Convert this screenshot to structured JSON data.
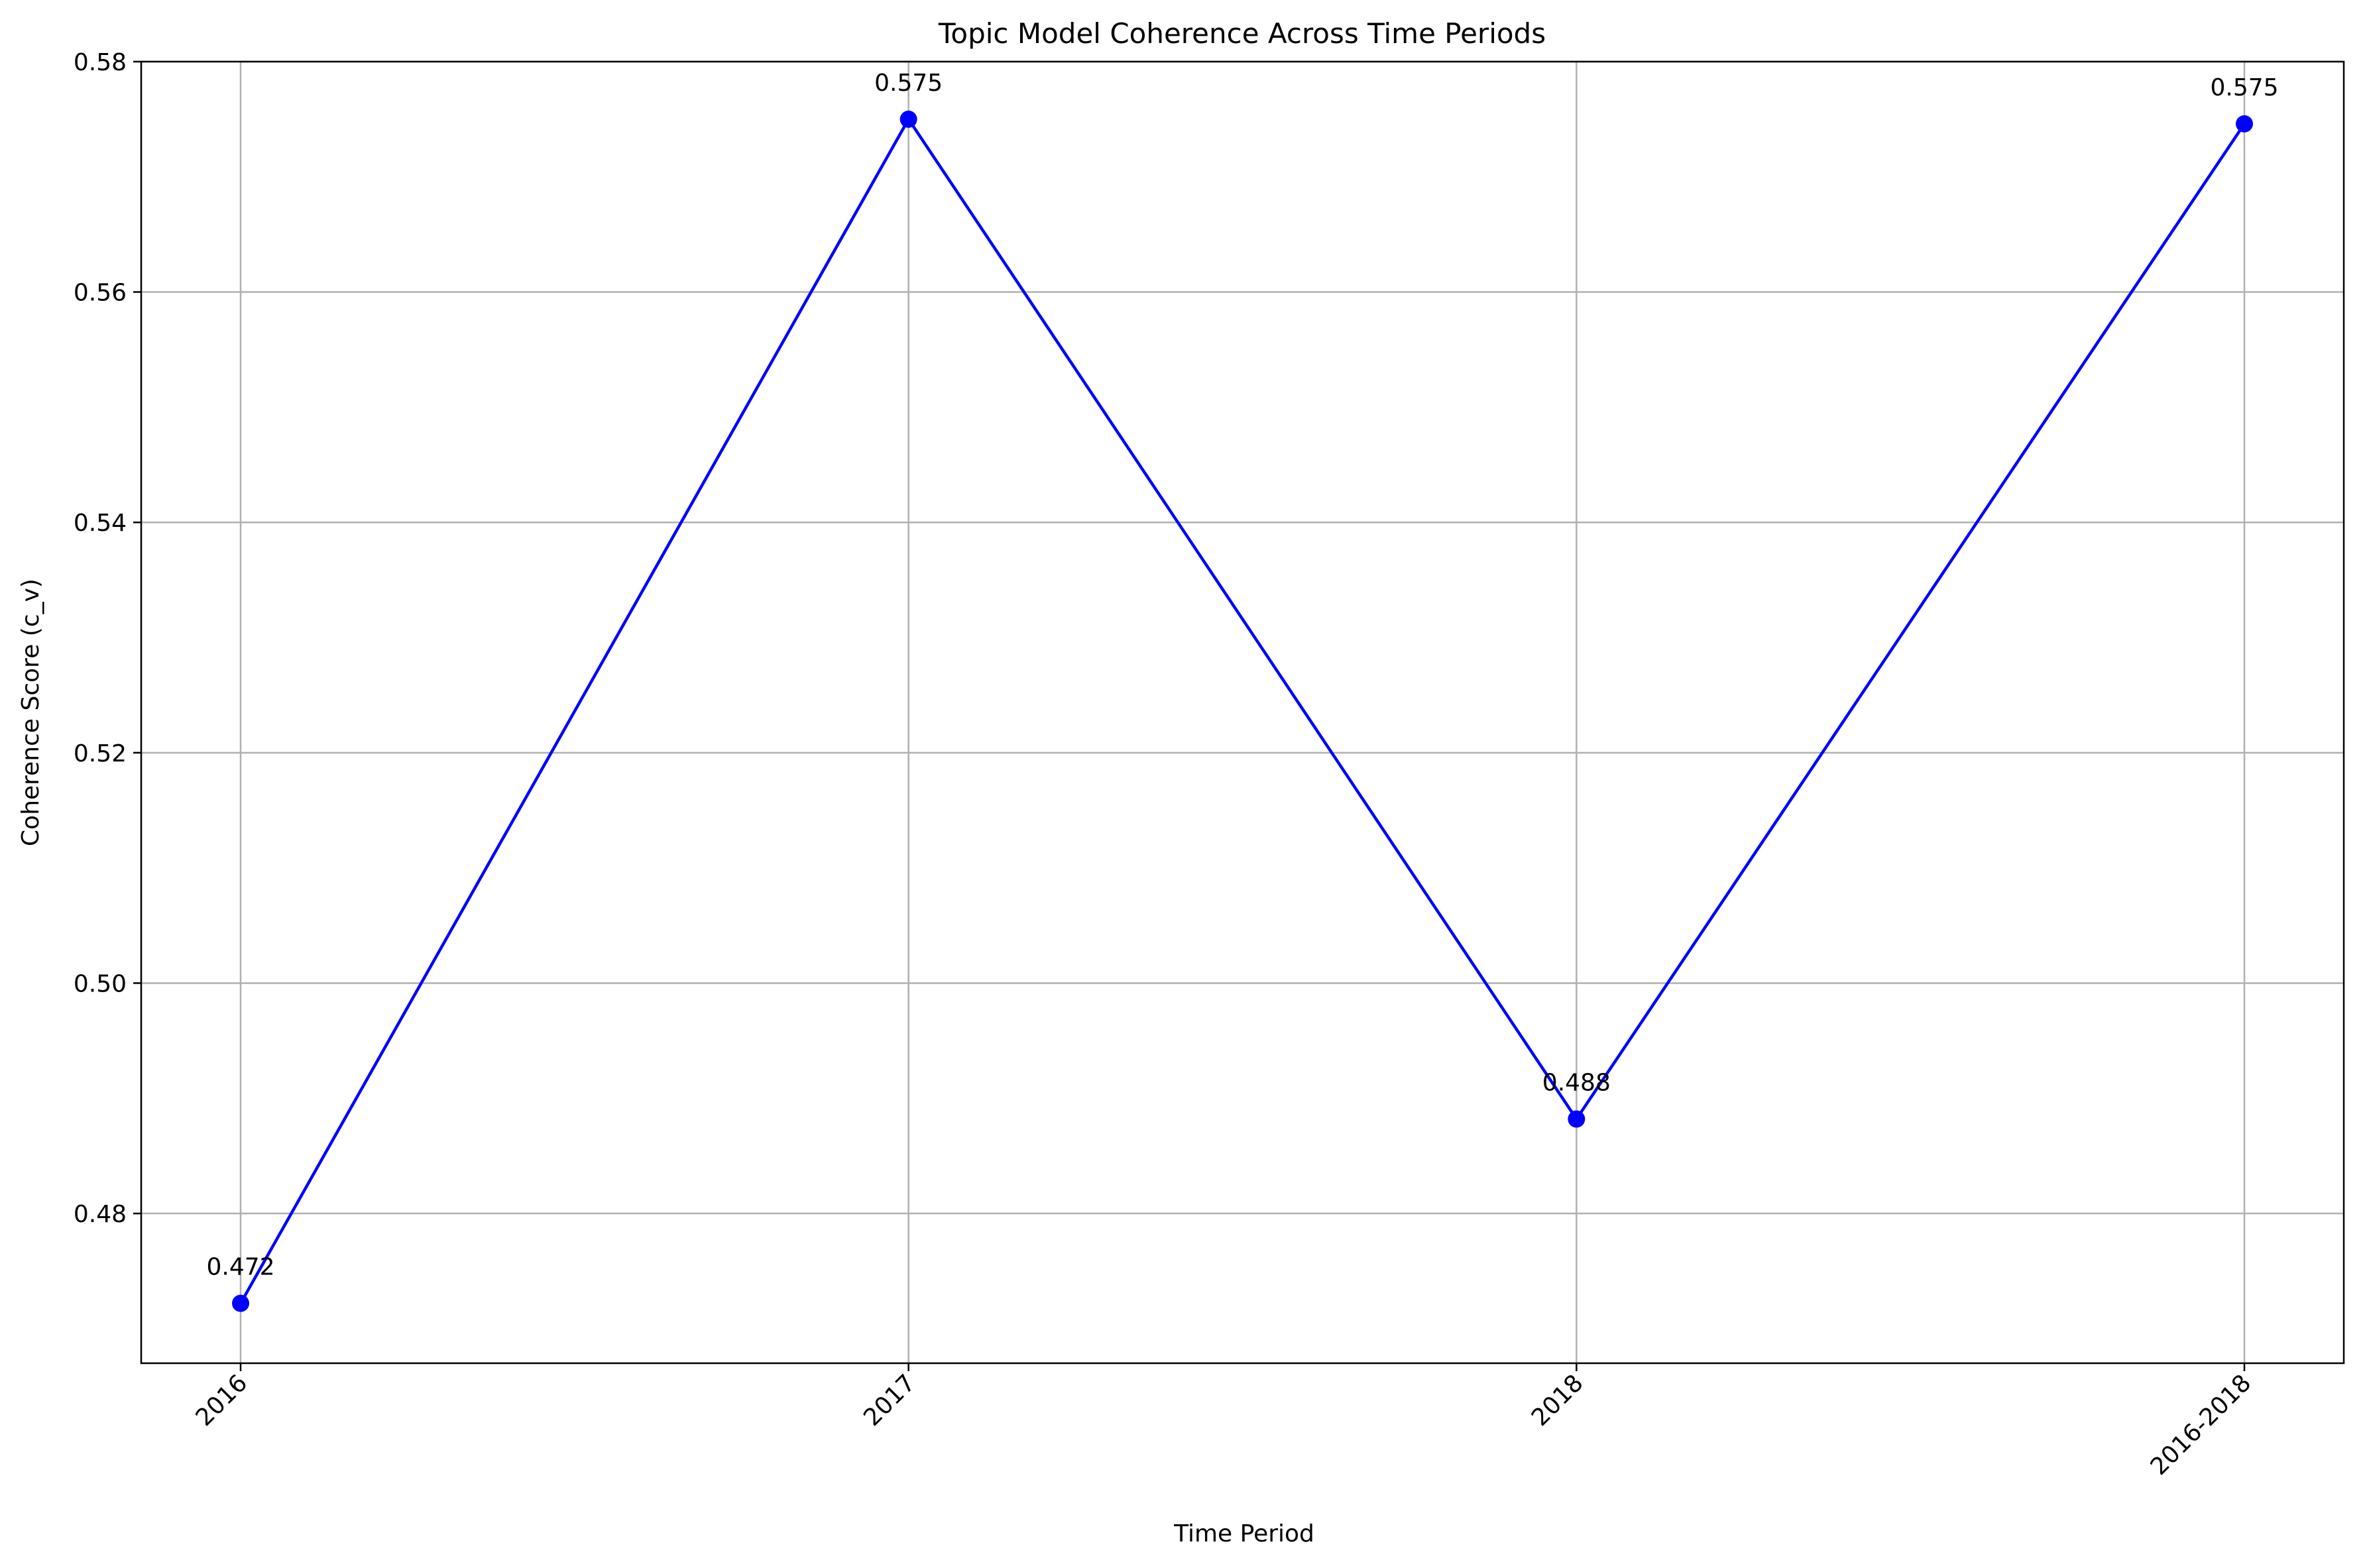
{
  "chart_data": {
    "type": "line",
    "title": "Topic Model Coherence Across Time Periods",
    "xlabel": "Time Period",
    "ylabel": "Coherence Score (c_v)",
    "categories": [
      "2016",
      "2017",
      "2018",
      "2016-2018"
    ],
    "series": [
      {
        "values": [
          0.4722,
          0.575,
          0.4882,
          0.5746
        ],
        "data_labels": [
          "0.472",
          "0.575",
          "0.488",
          "0.575"
        ],
        "color": "#0000ff",
        "marker": "circle"
      }
    ],
    "ylim": [
      0.467,
      0.58
    ],
    "yticks": [
      0.48,
      0.5,
      0.52,
      0.54,
      0.56,
      0.58
    ],
    "ytick_labels": [
      "0.48",
      "0.50",
      "0.52",
      "0.54",
      "0.56",
      "0.58"
    ],
    "xtick_rotation": 45,
    "grid": true,
    "legend": false
  }
}
